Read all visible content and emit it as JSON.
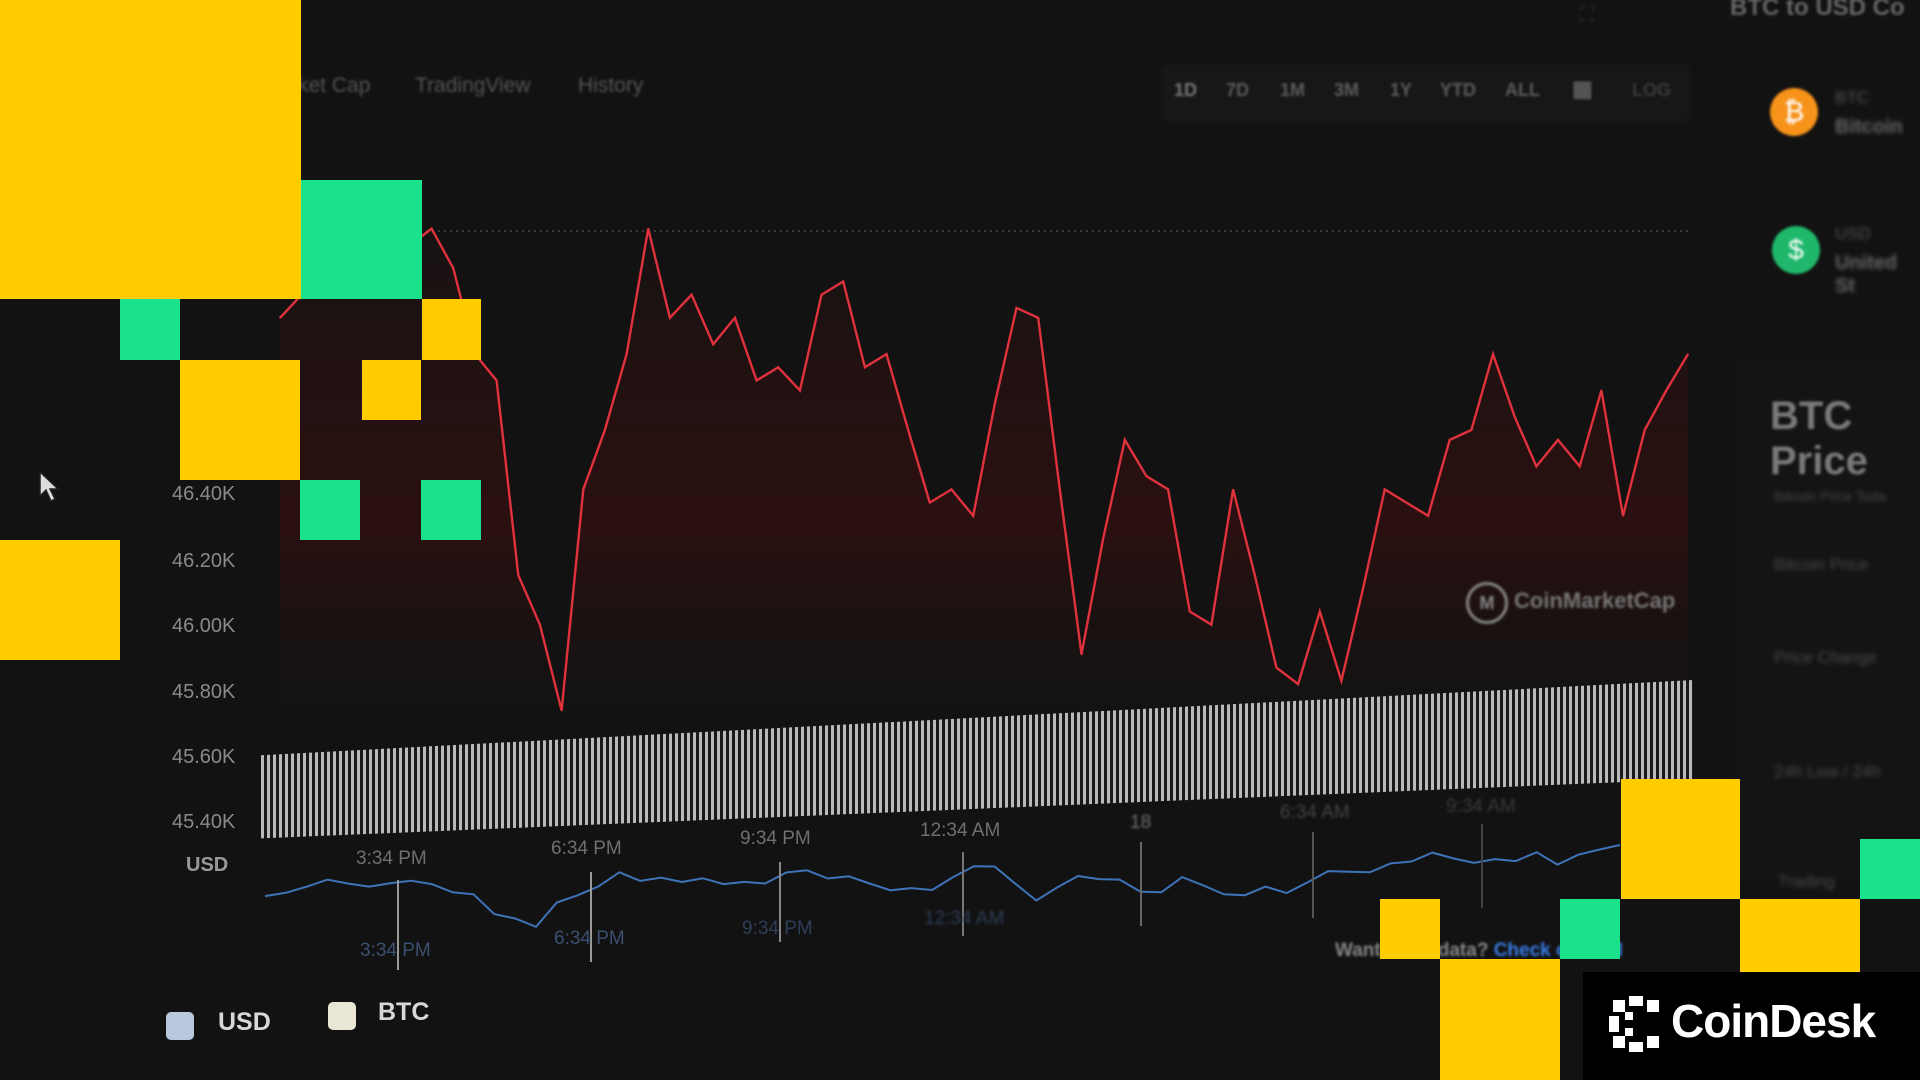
{
  "header": {
    "title": "BTC to USD Co"
  },
  "tabs": [
    {
      "label": "ket Cap"
    },
    {
      "label": "TradingView"
    },
    {
      "label": "History"
    }
  ],
  "ranges": [
    {
      "label": "1D"
    },
    {
      "label": "7D"
    },
    {
      "label": "1M"
    },
    {
      "label": "3M"
    },
    {
      "label": "1Y"
    },
    {
      "label": "YTD"
    },
    {
      "label": "ALL"
    },
    {
      "label": "LOG"
    }
  ],
  "calendar_icon": "calendar-icon",
  "converter": [
    {
      "code": "BTC",
      "name": "Bitcoin",
      "color": "#f7931a",
      "icon": "bitcoin-icon"
    },
    {
      "code": "USD",
      "name": "United St",
      "color": "#1fb86a",
      "icon": "dollar-icon"
    }
  ],
  "side_panel": {
    "title": "BTC Price",
    "rows": [
      "Bitcoin Price Toda",
      "Bitcoin Price",
      "Price Change",
      "24h Low / 24h",
      "Trading"
    ]
  },
  "watermark": "CoinMarketCap",
  "api_prompt": {
    "text": "Want more data? ",
    "link": "Check our API"
  },
  "legend": [
    {
      "label": "USD",
      "color": "#b9c9dd"
    },
    {
      "label": "BTC",
      "color": "#e9e6d6"
    }
  ],
  "brand": {
    "name": "CoinDesk",
    "colors": {
      "yellow": "#ffcc00",
      "green": "#19e28a"
    }
  },
  "chart_data": {
    "type": "line",
    "ylabel": "USD",
    "y_ticks": [
      "46.40K",
      "46.20K",
      "46.00K",
      "45.80K",
      "45.60K",
      "45.40K"
    ],
    "x_ticks": [
      "3:34 PM",
      "6:34 PM",
      "9:34 PM",
      "12:34 AM",
      "18",
      "6:34 AM",
      "9:34 AM"
    ],
    "navigator_ticks": [
      "3:34 PM",
      "6:34 PM",
      "9:34 PM",
      "12:34 AM"
    ],
    "ylim": [
      45400,
      47400
    ],
    "line_color": "#e0323c",
    "values": [
      46940,
      47010,
      47160,
      47340,
      47200,
      47090,
      47160,
      47210,
      47090,
      46830,
      46750,
      46160,
      46010,
      45750,
      46420,
      46600,
      46830,
      47210,
      46940,
      47010,
      46860,
      46940,
      46750,
      46790,
      46720,
      47010,
      47050,
      46790,
      46830,
      46600,
      46380,
      46420,
      46340,
      46680,
      46970,
      46940,
      46420,
      45920,
      46270,
      46570,
      46460,
      46420,
      46050,
      46010,
      46420,
      46160,
      45880,
      45830,
      46050,
      45840,
      46120,
      46420,
      46380,
      46340,
      46570,
      46600,
      46830,
      46640,
      46490,
      46570,
      46490,
      46720,
      46340,
      46600,
      46720,
      46830
    ]
  }
}
